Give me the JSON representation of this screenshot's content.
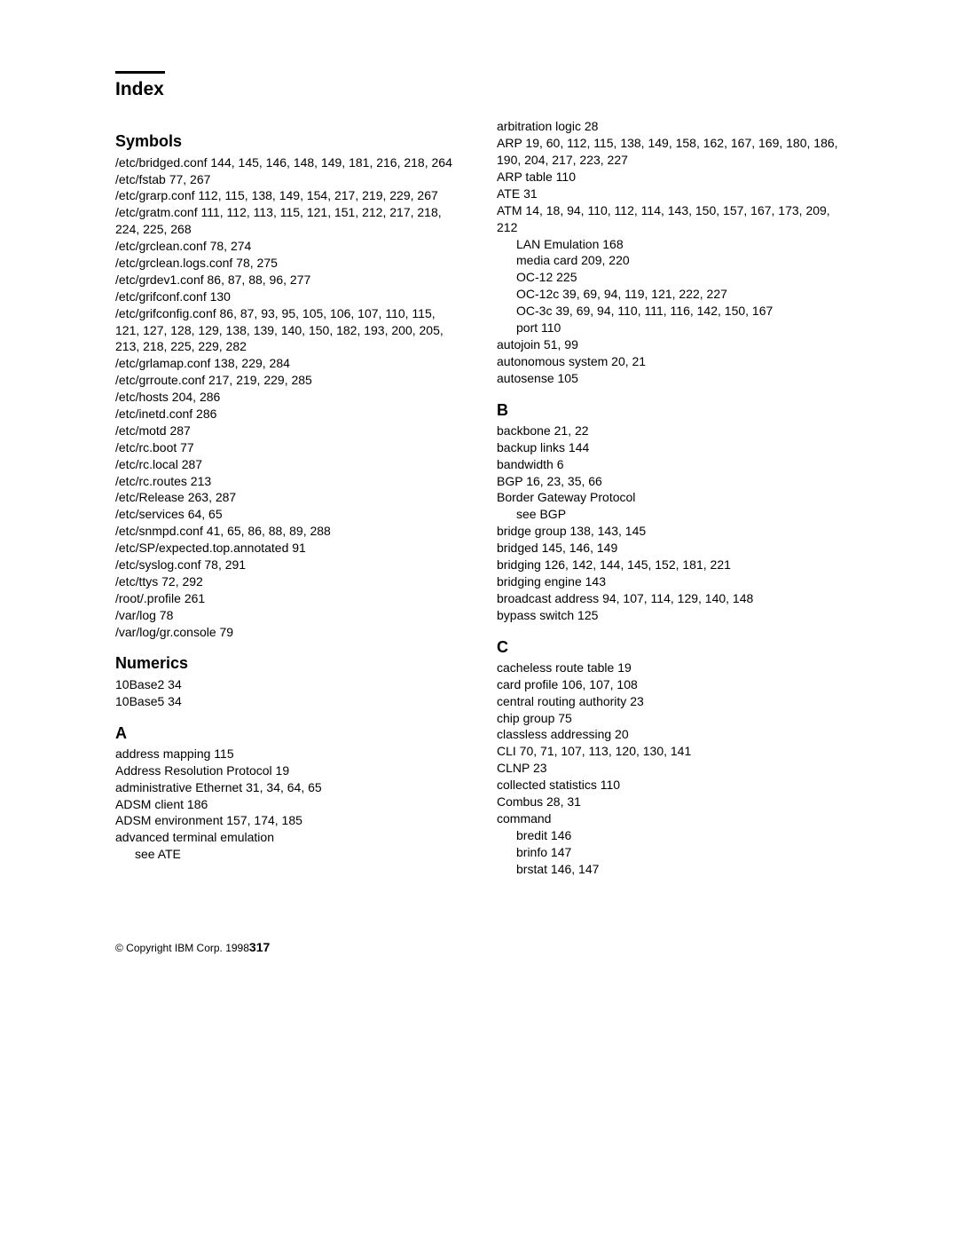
{
  "title": "Index",
  "footer": {
    "copyright": "© Copyright IBM Corp. 1998",
    "pagenum": "317"
  },
  "left": [
    {
      "type": "h",
      "text": "Symbols"
    },
    {
      "text": "/etc/bridged.conf   144, 145, 146, 148, 149, 181, 216, 218, 264"
    },
    {
      "text": "/etc/fstab   77, 267"
    },
    {
      "text": "/etc/grarp.conf   112, 115, 138, 149, 154, 217, 219, 229, 267"
    },
    {
      "text": "/etc/gratm.conf   111, 112, 113, 115, 121, 151, 212, 217, 218, 224, 225, 268"
    },
    {
      "text": "/etc/grclean.conf   78, 274"
    },
    {
      "text": "/etc/grclean.logs.conf   78, 275"
    },
    {
      "text": "/etc/grdev1.conf   86, 87, 88, 96, 277"
    },
    {
      "text": "/etc/grifconf.conf   130"
    },
    {
      "text": "/etc/grifconfig.conf   86, 87, 93, 95, 105, 106, 107, 110, 115, 121, 127, 128, 129, 138, 139, 140, 150, 182, 193, 200, 205, 213, 218, 225, 229, 282"
    },
    {
      "text": "/etc/grlamap.conf   138, 229, 284"
    },
    {
      "text": "/etc/grroute.conf   217, 219, 229, 285"
    },
    {
      "text": "/etc/hosts   204, 286"
    },
    {
      "text": "/etc/inetd.conf   286"
    },
    {
      "text": "/etc/motd   287"
    },
    {
      "text": "/etc/rc.boot   77"
    },
    {
      "text": "/etc/rc.local   287"
    },
    {
      "text": "/etc/rc.routes   213"
    },
    {
      "text": "/etc/Release   263, 287"
    },
    {
      "text": "/etc/services   64, 65"
    },
    {
      "text": "/etc/snmpd.conf   41, 65, 86, 88, 89, 288"
    },
    {
      "text": "/etc/SP/expected.top.annotated   91"
    },
    {
      "text": "/etc/syslog.conf   78, 291"
    },
    {
      "text": "/etc/ttys   72, 292"
    },
    {
      "text": "/root/.profile   261"
    },
    {
      "text": "/var/log   78"
    },
    {
      "text": "/var/log/gr.console   79"
    },
    {
      "type": "h",
      "text": "Numerics"
    },
    {
      "text": "10Base2   34"
    },
    {
      "text": "10Base5   34"
    },
    {
      "type": "h",
      "text": "A"
    },
    {
      "text": "address mapping   115"
    },
    {
      "text": "Address Resolution Protocol   19"
    },
    {
      "text": "administrative Ethernet   31, 34, 64, 65"
    },
    {
      "text": "ADSM client   186"
    },
    {
      "text": "ADSM environment   157, 174, 185"
    },
    {
      "text": "advanced terminal emulation"
    },
    {
      "text": "see ATE",
      "sub": true
    }
  ],
  "right": [
    {
      "text": "arbitration logic   28"
    },
    {
      "text": "ARP   19, 60, 112, 115, 138, 149, 158, 162, 167, 169, 180, 186, 190, 204, 217, 223, 227"
    },
    {
      "text": "ARP table   110"
    },
    {
      "text": "ATE   31"
    },
    {
      "text": "ATM   14, 18, 94, 110, 112, 114, 143, 150, 157, 167, 173, 209, 212"
    },
    {
      "text": "LAN Emulation   168",
      "sub": true
    },
    {
      "text": "media card   209, 220",
      "sub": true
    },
    {
      "text": "OC-12   225",
      "sub": true
    },
    {
      "text": "OC-12c   39, 69, 94, 119, 121, 222, 227",
      "sub": true
    },
    {
      "text": "OC-3c   39, 69, 94, 110, 111, 116, 142, 150, 167",
      "sub": true
    },
    {
      "text": "port   110",
      "sub": true
    },
    {
      "text": "autojoin   51, 99"
    },
    {
      "text": "autonomous system   20, 21"
    },
    {
      "text": "autosense   105"
    },
    {
      "type": "h",
      "text": "B"
    },
    {
      "text": "backbone   21, 22"
    },
    {
      "text": "backup links   144"
    },
    {
      "text": "bandwidth   6"
    },
    {
      "text": "BGP   16, 23, 35, 66"
    },
    {
      "text": "Border Gateway Protocol"
    },
    {
      "text": "see BGP",
      "sub": true
    },
    {
      "text": "bridge group   138, 143, 145"
    },
    {
      "text": "bridged   145, 146, 149"
    },
    {
      "text": "bridging   126, 142, 144, 145, 152, 181, 221"
    },
    {
      "text": "bridging engine   143"
    },
    {
      "text": "broadcast address   94, 107, 114, 129, 140, 148"
    },
    {
      "text": "bypass switch   125"
    },
    {
      "type": "h",
      "text": "C"
    },
    {
      "text": "cacheless route table   19"
    },
    {
      "text": "card profile   106, 107, 108"
    },
    {
      "text": "central routing authority   23"
    },
    {
      "text": "chip group   75"
    },
    {
      "text": "classless addressing   20"
    },
    {
      "text": "CLI   70, 71, 107, 113, 120, 130, 141"
    },
    {
      "text": "CLNP   23"
    },
    {
      "text": "collected statistics   110"
    },
    {
      "text": "Combus   28, 31"
    },
    {
      "text": "command"
    },
    {
      "text": "bredit   146",
      "sub": true
    },
    {
      "text": "brinfo   147",
      "sub": true
    },
    {
      "text": "brstat   146, 147",
      "sub": true
    }
  ]
}
